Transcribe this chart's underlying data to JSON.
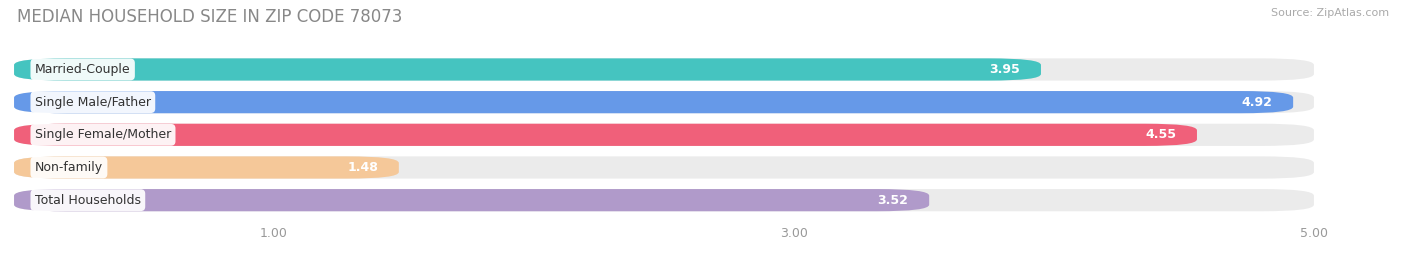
{
  "title": "MEDIAN HOUSEHOLD SIZE IN ZIP CODE 78073",
  "source": "Source: ZipAtlas.com",
  "categories": [
    "Married-Couple",
    "Single Male/Father",
    "Single Female/Mother",
    "Non-family",
    "Total Households"
  ],
  "values": [
    3.95,
    4.92,
    4.55,
    1.48,
    3.52
  ],
  "bar_colors": [
    "#45C4C0",
    "#6699E8",
    "#F0607A",
    "#F5C899",
    "#B09ACA"
  ],
  "xlim_data": [
    0.0,
    5.3
  ],
  "xstart": 0.0,
  "xticks": [
    1.0,
    3.0,
    5.0
  ],
  "background_color": "#ffffff",
  "pill_background": "#ebebeb",
  "title_fontsize": 12,
  "tick_fontsize": 9,
  "bar_label_fontsize": 9,
  "category_fontsize": 9,
  "title_color": "#888888",
  "source_color": "#aaaaaa"
}
